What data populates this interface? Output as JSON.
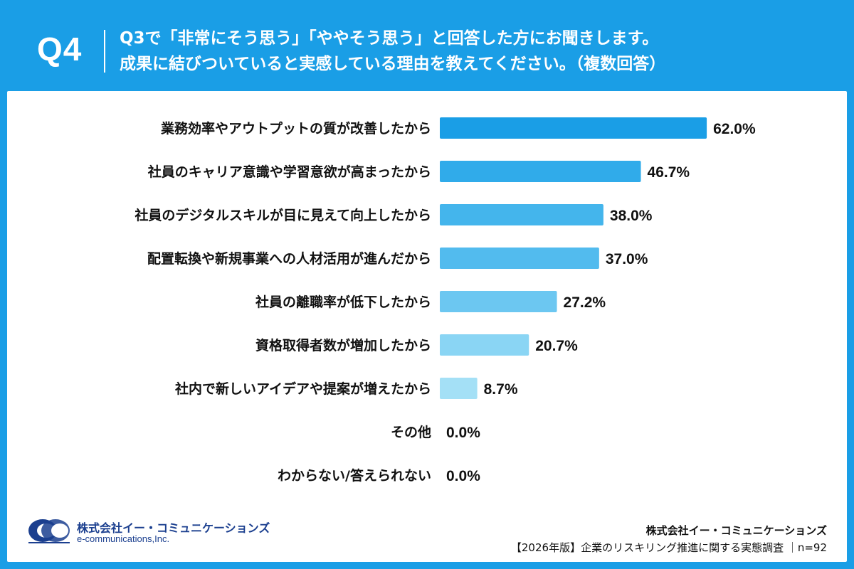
{
  "header": {
    "question_id": "Q4",
    "question_line1": "Q3で「非常にそう思う」「ややそう思う」と回答した方にお聞きします。",
    "question_line2": "成果に結びついていると実感している理由を教えてください。（複数回答）"
  },
  "chart_data": {
    "type": "bar",
    "orientation": "horizontal",
    "categories": [
      "業務効率やアウトプットの質が改善したから",
      "社員のキャリア意識や学習意欲が高まったから",
      "社員のデジタルスキルが目に見えて向上したから",
      "配置転換や新規事業への人材活用が進んだから",
      "社員の離職率が低下したから",
      "資格取得者数が増加したから",
      "社内で新しいアイデアや提案が増えたから",
      "その他",
      "わからない/答えられない"
    ],
    "values": [
      62.0,
      46.7,
      38.0,
      37.0,
      27.2,
      20.7,
      8.7,
      0.0,
      0.0
    ],
    "value_labels": [
      "62.0%",
      "46.7%",
      "38.0%",
      "37.0%",
      "27.2%",
      "20.7%",
      "8.7%",
      "0.0%",
      "0.0%"
    ],
    "unit": "%",
    "xlim": [
      0,
      100
    ],
    "grid": false,
    "bar_colors": [
      "#1a9ee6",
      "#30abea",
      "#44b5ec",
      "#52bbee",
      "#6cc7f1",
      "#8ad5f4",
      "#a4e0f6",
      "#c0eaf9",
      "#c0eaf9"
    ]
  },
  "footer": {
    "logo_company": "株式会社イー・コミュニケーションズ",
    "logo_url": "e-communications,Inc.",
    "company": "株式会社イー・コミュニケーションズ",
    "survey": "【2026年版】企業のリスキリング推進に関する実態調査 ｜n=92"
  },
  "colors": {
    "accent": "#1a9ee6",
    "logo": "#1b3f8f"
  }
}
